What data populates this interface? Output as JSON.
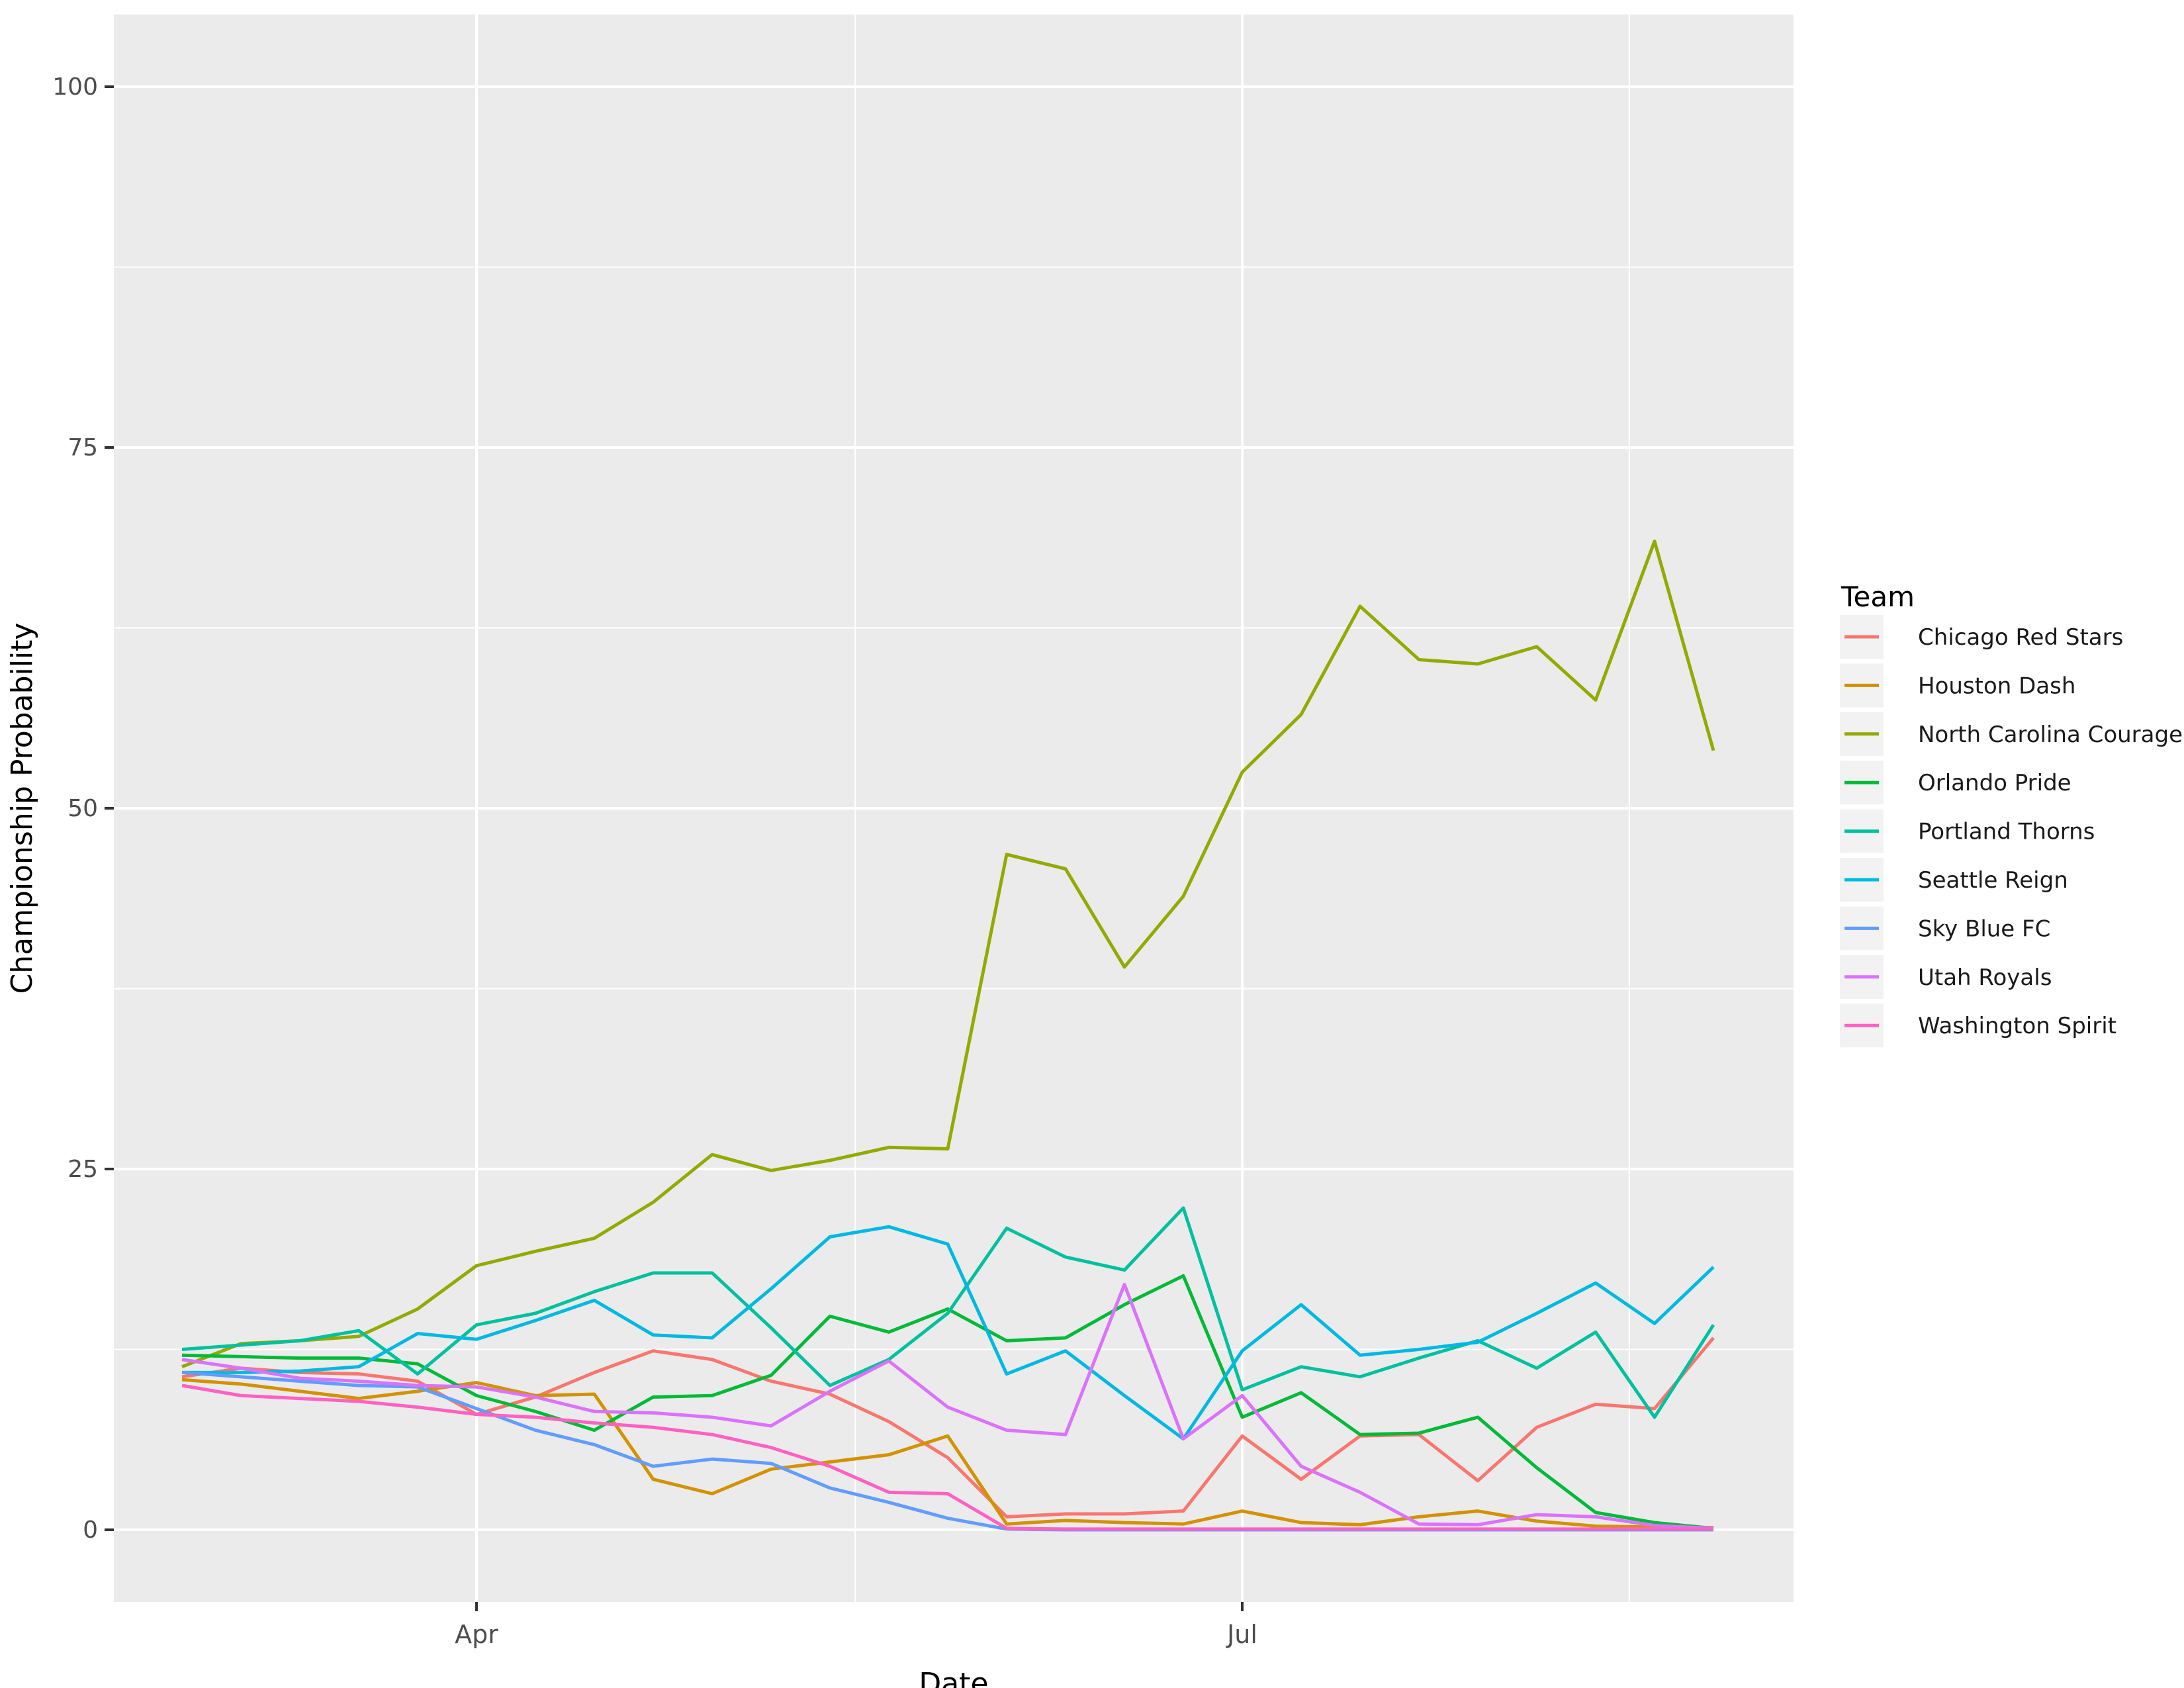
{
  "chart_data": {
    "type": "line",
    "title": "",
    "xlabel": "Date",
    "ylabel": "Championship Probability",
    "legend_title": "Team",
    "legend_position": "right",
    "grid": true,
    "panel_background": "#EBEBEB",
    "gridline_color": "#FFFFFF",
    "tick_label_color": "#4D4D4D",
    "tick_mark_color": "#333333",
    "axis_title_color": "#000000",
    "legend_text_color": "#1A1A1A",
    "legend_key_background": "#F2F2F2",
    "ylim": [
      0,
      100
    ],
    "y_ticks": [
      0,
      25,
      50,
      75,
      100
    ],
    "y_minor_ticks": [
      12.5,
      37.5,
      62.5,
      87.5
    ],
    "x_major_ticks": [
      {
        "date": "2018-04-01",
        "label": "Apr"
      },
      {
        "date": "2018-07-01",
        "label": "Jul"
      }
    ],
    "x_minor_ticks": [
      "2018-05-16",
      "2018-08-16"
    ],
    "x_dates": [
      "2018-02-25",
      "2018-03-04",
      "2018-03-11",
      "2018-03-18",
      "2018-03-25",
      "2018-04-01",
      "2018-04-08",
      "2018-04-15",
      "2018-04-22",
      "2018-04-29",
      "2018-05-06",
      "2018-05-13",
      "2018-05-20",
      "2018-05-27",
      "2018-06-03",
      "2018-06-10",
      "2018-06-17",
      "2018-06-24",
      "2018-07-01",
      "2018-07-08",
      "2018-07-15",
      "2018-07-22",
      "2018-07-29",
      "2018-08-05",
      "2018-08-12",
      "2018-08-19",
      "2018-08-26"
    ],
    "series": [
      {
        "name": "Chicago Red Stars",
        "color": "#F8766D",
        "values": [
          10.6,
          11.2,
          10.9,
          10.8,
          10.3,
          8.0,
          9.2,
          10.9,
          12.4,
          11.8,
          10.3,
          9.4,
          7.5,
          5.0,
          0.9,
          1.1,
          1.1,
          1.3,
          6.5,
          3.5,
          6.5,
          6.6,
          3.4,
          7.1,
          8.7,
          8.4,
          13.3
        ]
      },
      {
        "name": "Houston Dash",
        "color": "#D39200",
        "values": [
          10.4,
          10.1,
          9.6,
          9.1,
          9.6,
          10.2,
          9.3,
          9.4,
          3.5,
          2.5,
          4.2,
          4.7,
          5.2,
          6.5,
          0.4,
          0.65,
          0.5,
          0.4,
          1.3,
          0.5,
          0.35,
          0.9,
          1.3,
          0.6,
          0.25,
          0.2,
          0.15
        ]
      },
      {
        "name": "North Carolina Courage",
        "color": "#93AA00",
        "values": [
          11.3,
          12.9,
          13.1,
          13.4,
          15.3,
          18.3,
          19.3,
          20.2,
          22.7,
          26.0,
          24.9,
          25.6,
          26.5,
          26.4,
          46.8,
          45.8,
          39.0,
          43.9,
          52.5,
          56.5,
          64.0,
          60.3,
          60.0,
          61.2,
          57.5,
          68.5,
          54.0
        ]
      },
      {
        "name": "Orlando Pride",
        "color": "#00BA38",
        "values": [
          12.1,
          12.0,
          11.9,
          11.9,
          11.5,
          9.3,
          8.2,
          6.9,
          9.2,
          9.3,
          10.7,
          14.8,
          13.7,
          15.3,
          13.1,
          13.3,
          15.6,
          17.6,
          7.8,
          9.5,
          6.6,
          6.7,
          7.8,
          4.3,
          1.2,
          0.5,
          0.1
        ]
      },
      {
        "name": "Portland Thorns",
        "color": "#00C19F",
        "values": [
          12.5,
          12.8,
          13.1,
          13.8,
          10.8,
          14.2,
          15.0,
          16.5,
          17.8,
          17.8,
          14.0,
          10.0,
          11.8,
          15.0,
          20.9,
          18.9,
          18.0,
          22.3,
          9.7,
          11.3,
          10.6,
          11.9,
          13.1,
          11.2,
          13.7,
          7.8,
          14.2
        ]
      },
      {
        "name": "Seattle Reign",
        "color": "#00B9E3",
        "values": [
          10.9,
          10.9,
          11.0,
          11.3,
          13.6,
          13.2,
          14.5,
          15.9,
          13.5,
          13.3,
          16.7,
          20.3,
          21.0,
          19.8,
          10.8,
          12.4,
          9.3,
          6.3,
          12.4,
          15.6,
          12.1,
          12.5,
          13.0,
          15.0,
          17.1,
          14.3,
          18.2
        ]
      },
      {
        "name": "Sky Blue FC",
        "color": "#619CFF",
        "values": [
          10.9,
          10.6,
          10.3,
          10.0,
          9.9,
          8.4,
          6.9,
          5.9,
          4.4,
          4.9,
          4.6,
          2.9,
          1.9,
          0.8,
          0.05,
          0.0,
          0.0,
          0.0,
          0.0,
          0.0,
          0.0,
          0.0,
          0.0,
          0.0,
          0.0,
          0.0,
          0.0
        ]
      },
      {
        "name": "Utah Royals",
        "color": "#DB72FB",
        "values": [
          11.8,
          11.2,
          10.5,
          10.3,
          10.0,
          9.9,
          9.2,
          8.2,
          8.1,
          7.8,
          7.2,
          9.6,
          11.7,
          8.5,
          6.9,
          6.6,
          17.0,
          6.3,
          9.3,
          4.4,
          2.6,
          0.4,
          0.35,
          1.05,
          0.9,
          0.3,
          0.1
        ]
      },
      {
        "name": "Washington Spirit",
        "color": "#FF61C3",
        "values": [
          10.0,
          9.3,
          9.1,
          8.9,
          8.5,
          8.0,
          7.8,
          7.4,
          7.1,
          6.6,
          5.7,
          4.4,
          2.6,
          2.5,
          0.1,
          0.05,
          0.05,
          0.05,
          0.05,
          0.05,
          0.05,
          0.05,
          0.05,
          0.05,
          0.05,
          0.05,
          0.05
        ]
      }
    ]
  }
}
